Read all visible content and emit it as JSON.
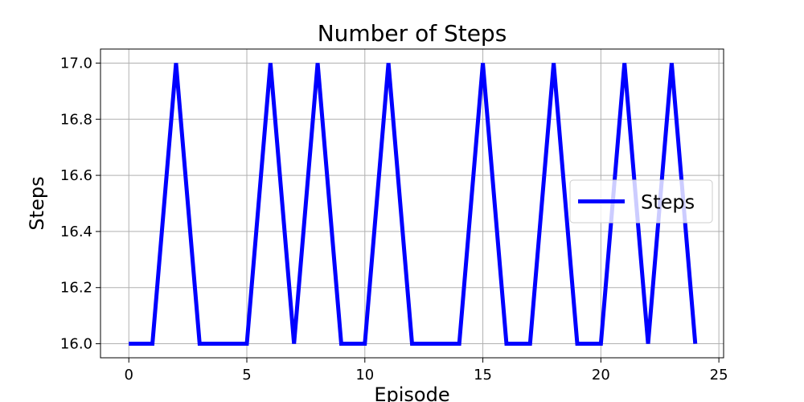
{
  "chart_data": {
    "type": "line",
    "title": "Number of Steps",
    "xlabel": "Episode",
    "ylabel": "Steps",
    "xlim": [
      -1.2,
      25.2
    ],
    "ylim": [
      15.95,
      17.05
    ],
    "xticks": [
      0,
      5,
      10,
      15,
      20,
      25
    ],
    "yticks": [
      16.0,
      16.2,
      16.4,
      16.6,
      16.8,
      17.0
    ],
    "xtick_labels": [
      "0",
      "5",
      "10",
      "15",
      "20",
      "25"
    ],
    "ytick_labels": [
      "16.0",
      "16.2",
      "16.4",
      "16.6",
      "16.8",
      "17.0"
    ],
    "grid": true,
    "legend": {
      "position": "center-right",
      "entries": [
        "Steps"
      ]
    },
    "series": [
      {
        "name": "Steps",
        "color": "#0000ff",
        "x": [
          0,
          1,
          2,
          3,
          4,
          5,
          6,
          7,
          8,
          9,
          10,
          11,
          12,
          13,
          14,
          15,
          16,
          17,
          18,
          19,
          20,
          21,
          22,
          23,
          24
        ],
        "y": [
          16,
          16,
          17,
          16,
          16,
          16,
          17,
          16,
          17,
          16,
          16,
          17,
          16,
          16,
          16,
          17,
          16,
          16,
          17,
          16,
          16,
          17,
          16,
          17,
          16
        ]
      }
    ]
  }
}
